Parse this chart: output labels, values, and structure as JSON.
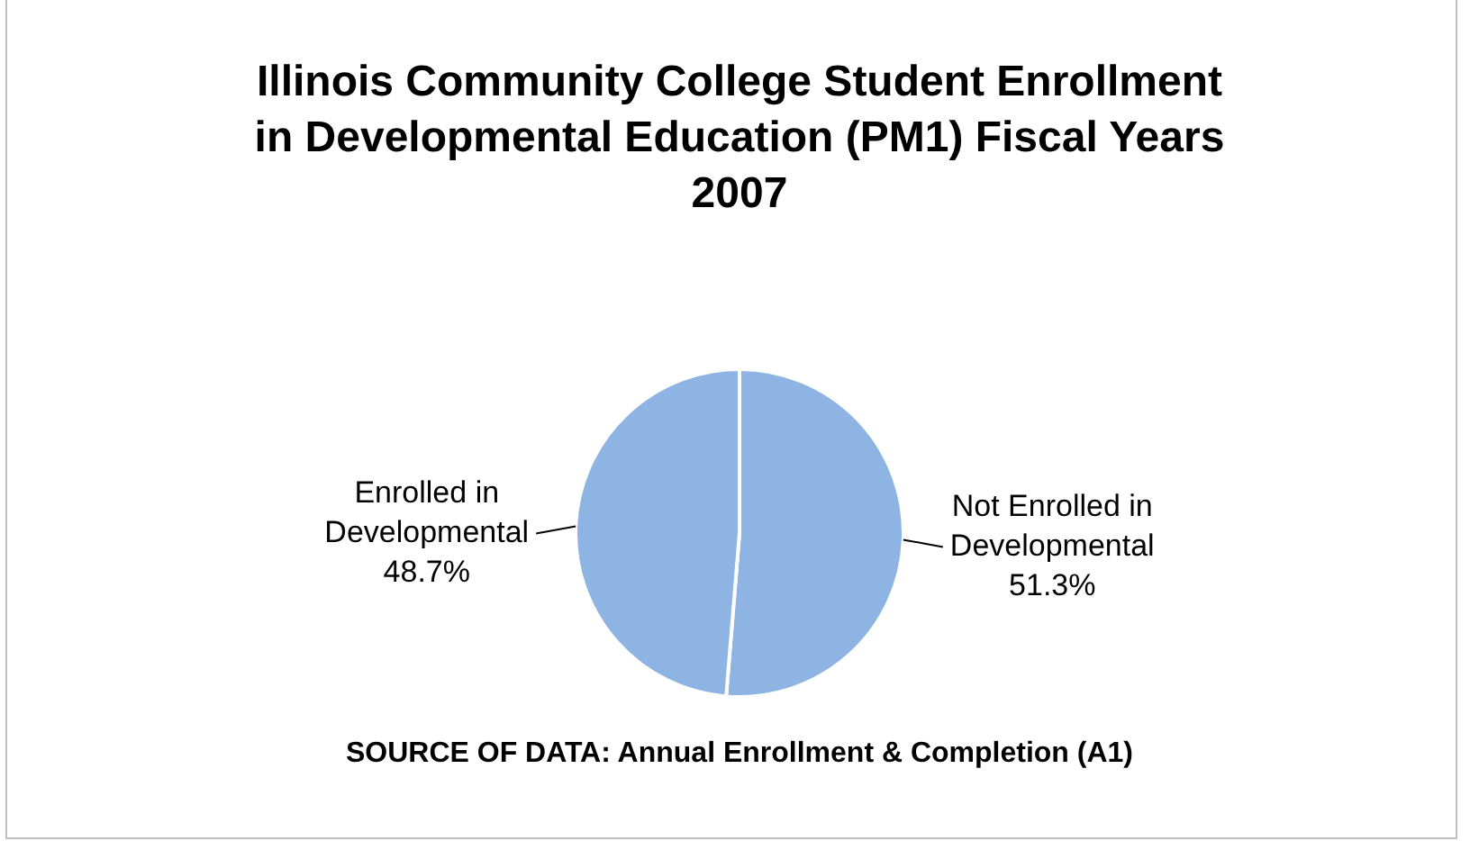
{
  "chart_data": {
    "type": "pie",
    "title": "Illinois Community College Student Enrollment in Developmental Education (PM1) Fiscal Years 2007",
    "categories": [
      "Not Enrolled in Developmental",
      "Enrolled in Developmental"
    ],
    "values": [
      51.3,
      48.7
    ],
    "colors": [
      "#8eb4e3",
      "#8eb4e3"
    ],
    "value_labels": [
      "51.3%",
      "48.7%"
    ],
    "legend": false,
    "annotations": [
      "SOURCE OF DATA: Annual Enrollment & Completion (A1)"
    ]
  }
}
